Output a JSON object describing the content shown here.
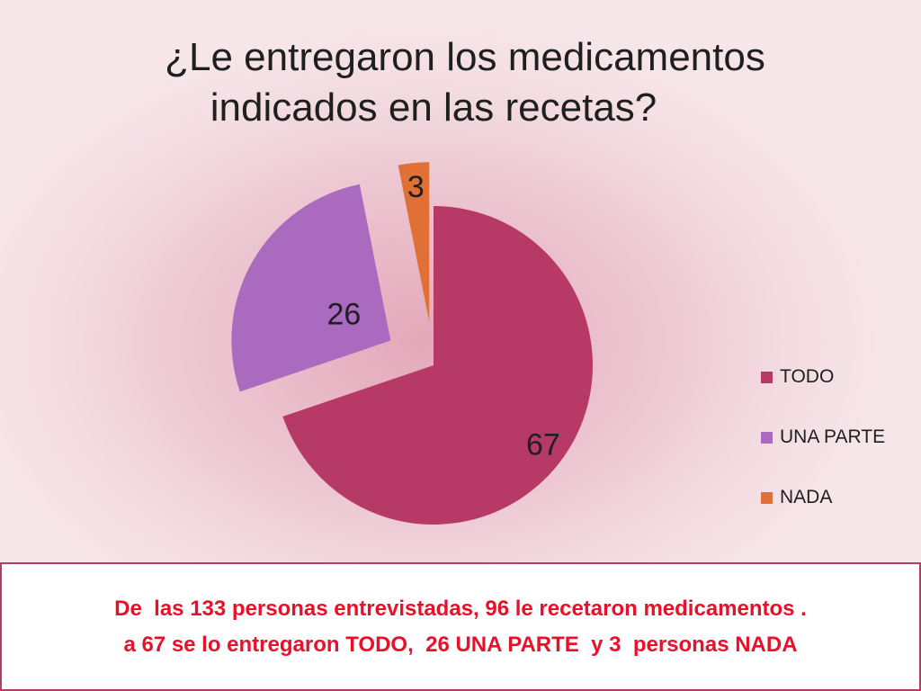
{
  "colors": {
    "todo": "#b73a66",
    "una_parte": "#a96abf",
    "nada": "#e07035"
  },
  "chart_data": {
    "type": "pie",
    "title": "¿Le entregaron los medicamentos indicados en las recetas?",
    "title_lines": [
      "¿Le entregaron los medicamentos",
      "indicados en las recetas?"
    ],
    "categories": [
      "TODO",
      "UNA PARTE",
      "NADA"
    ],
    "values": [
      67,
      26,
      3
    ],
    "data_labels": [
      "67",
      "26",
      "3"
    ],
    "exploded": true,
    "legend_position": "right"
  },
  "note": {
    "line1": "De  las 133 personas entrevistadas, 96 le recetaron medicamentos .",
    "line2": "a 67 se lo entregaron TODO,  26 UNA PARTE  y 3  personas NADA"
  }
}
